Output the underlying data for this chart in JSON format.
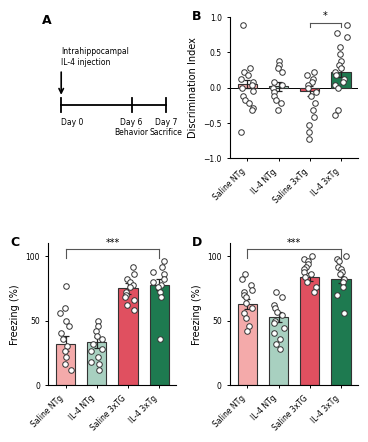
{
  "panel_A": {
    "title": "A"
  },
  "panel_B": {
    "title": "B",
    "ylabel": "Discrimination Index",
    "ylim": [
      -1.0,
      1.0
    ],
    "yticks": [
      -1.0,
      -0.5,
      0.0,
      0.5,
      1.0
    ],
    "categories": [
      "Saline NTg",
      "IL-4 NTg",
      "Saline 3xTg",
      "IL-4 3xTg"
    ],
    "bar_means": [
      0.05,
      0.02,
      -0.05,
      0.22
    ],
    "bar_sems": [
      0.06,
      0.06,
      0.07,
      0.07
    ],
    "bar_colors": [
      "#F4AAAA",
      "#A8D0C0",
      "#E05060",
      "#1E7A50"
    ],
    "dot_data": [
      [
        0.88,
        0.28,
        0.22,
        0.18,
        0.12,
        0.08,
        0.04,
        0.0,
        -0.05,
        -0.12,
        -0.18,
        -0.22,
        -0.28,
        -0.32,
        -0.62
      ],
      [
        0.38,
        0.32,
        0.28,
        0.22,
        0.08,
        0.04,
        0.0,
        -0.06,
        -0.12,
        -0.18,
        -0.22,
        -0.32
      ],
      [
        0.22,
        0.18,
        0.12,
        0.08,
        0.04,
        0.0,
        -0.06,
        -0.12,
        -0.22,
        -0.32,
        -0.42,
        -0.52,
        -0.62,
        -0.72
      ],
      [
        0.88,
        0.78,
        0.72,
        0.58,
        0.48,
        0.38,
        0.32,
        0.28,
        0.22,
        0.18,
        0.12,
        0.08,
        0.04,
        0.0,
        -0.32,
        -0.38
      ]
    ],
    "sig_bar": [
      2,
      3
    ],
    "sig_text": "*"
  },
  "panel_C": {
    "title": "C",
    "ylabel": "Freezing (%)",
    "ylim": [
      0,
      110
    ],
    "yticks": [
      0,
      50,
      100
    ],
    "categories": [
      "Saline NTg",
      "IL-4 NTg",
      "Saline 3xTG",
      "IL-4 3xTg"
    ],
    "bar_means": [
      32,
      33,
      75,
      78
    ],
    "bar_sems": [
      6,
      4,
      4,
      4
    ],
    "bar_colors": [
      "#F4AAAA",
      "#A8D0C0",
      "#E05060",
      "#1E7A50"
    ],
    "dot_data": [
      [
        77,
        60,
        56,
        50,
        46,
        40,
        36,
        30,
        26,
        22,
        16,
        12
      ],
      [
        50,
        46,
        42,
        38,
        36,
        32,
        28,
        26,
        22,
        18,
        16,
        12
      ],
      [
        92,
        86,
        82,
        80,
        78,
        76,
        72,
        70,
        68,
        66,
        62,
        58
      ],
      [
        96,
        92,
        88,
        86,
        82,
        80,
        78,
        76,
        72,
        68,
        36
      ]
    ],
    "sig_bar": [
      0,
      3
    ],
    "sig_text": "***"
  },
  "panel_D": {
    "title": "D",
    "ylabel": "Freezing (%)",
    "ylim": [
      0,
      110
    ],
    "yticks": [
      0,
      50,
      100
    ],
    "categories": [
      "Saline NTg",
      "IL-4 NTg",
      "Saline 3xTG",
      "IL-4 3xTg"
    ],
    "bar_means": [
      63,
      53,
      84,
      82
    ],
    "bar_sems": [
      4,
      4,
      3,
      3
    ],
    "bar_colors": [
      "#F4AAAA",
      "#A8D0C0",
      "#E05060",
      "#1E7A50"
    ],
    "dot_data": [
      [
        86,
        82,
        78,
        74,
        72,
        70,
        68,
        64,
        60,
        56,
        52,
        46,
        42
      ],
      [
        72,
        68,
        62,
        60,
        57,
        54,
        50,
        48,
        44,
        40,
        36,
        32,
        28
      ],
      [
        100,
        98,
        96,
        94,
        92,
        90,
        88,
        86,
        84,
        80,
        76,
        72
      ],
      [
        100,
        98,
        96,
        92,
        90,
        88,
        86,
        82,
        80,
        76,
        70,
        56
      ]
    ],
    "sig_bar": [
      0,
      3
    ],
    "sig_text": "***"
  },
  "bg_color": "#FFFFFF",
  "dot_color": "#FFFFFF",
  "dot_edge_color": "#333333",
  "dot_size": 16,
  "dot_lw": 0.7,
  "bar_edge_color": "#333333",
  "bar_lw": 0.8,
  "tick_labelsize": 5.5,
  "axis_labelsize": 7,
  "panel_labelsize": 9
}
